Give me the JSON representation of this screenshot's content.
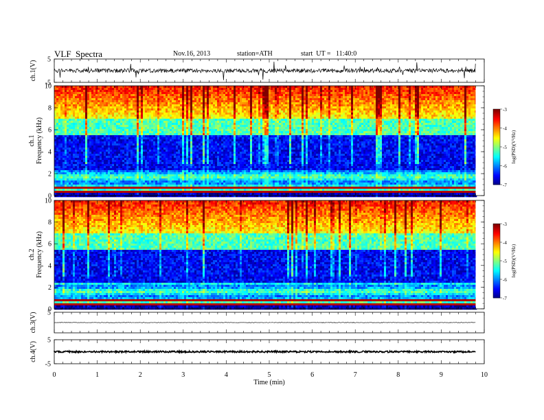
{
  "header": {
    "title": "VLF  Spectra",
    "date": "Nov.16, 2013",
    "station": "station=ATH",
    "start_ut": "start  UT =   11:40:0"
  },
  "chart_data": [
    {
      "type": "line",
      "name": "ch1-waveform",
      "ylabel": "ch.1(V)",
      "ylim": [
        -5,
        5
      ],
      "yticks": [
        "5",
        "-5"
      ],
      "color": "#000000",
      "description_values": {
        "baseline": 0,
        "noise_amplitude": 1
      }
    },
    {
      "type": "heatmap",
      "name": "ch1-spectrogram",
      "ylabel_channel": "ch.1",
      "ylabel": "Frequency  (kHz)",
      "ylim": [
        0,
        10
      ],
      "yticks": [
        "0",
        "2",
        "4",
        "6",
        "8",
        "10"
      ],
      "colorbar": {
        "label": "log(PSD)(V²/Hz)",
        "range": [
          -7,
          -3
        ],
        "ticks": [
          "-3",
          "-4",
          "-5",
          "-6",
          "-7"
        ]
      }
    },
    {
      "type": "heatmap",
      "name": "ch2-spectrogram",
      "ylabel_channel": "ch.2",
      "ylabel": "Frequency  (kHz)",
      "ylim": [
        0,
        10
      ],
      "yticks": [
        "0",
        "2",
        "4",
        "6",
        "8",
        "10"
      ],
      "colorbar": {
        "label": "log(PSD)(V²/Hz)",
        "range": [
          -7,
          -3
        ],
        "ticks": [
          "-3",
          "-4",
          "-5",
          "-6",
          "-7"
        ]
      }
    },
    {
      "type": "line",
      "name": "ch3-waveform",
      "ylabel": "ch.3(V)",
      "ylim": [
        -5,
        5
      ],
      "yticks": [
        "5"
      ],
      "color": "#000000",
      "description_values": {
        "baseline": 0
      }
    },
    {
      "type": "line",
      "name": "ch4-waveform",
      "ylabel": "ch.4(V)",
      "ylim": [
        -5,
        5
      ],
      "yticks": [
        "5",
        "-5"
      ],
      "color": "#000000",
      "description_values": {
        "baseline": 0
      }
    }
  ],
  "x_axis": {
    "label": "Time  (min)",
    "range": [
      0,
      10
    ],
    "ticks": [
      "0",
      "1",
      "2",
      "3",
      "4",
      "5",
      "6",
      "7",
      "8",
      "9",
      "10"
    ],
    "data_end": 9.8
  }
}
